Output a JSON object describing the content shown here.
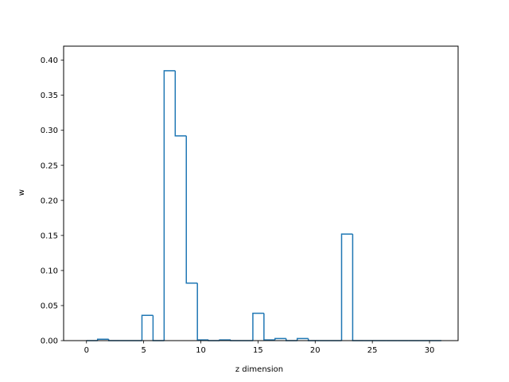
{
  "chart_data": {
    "type": "bar",
    "style": "step-histogram",
    "color": "#1f77b4",
    "xlabel": "z dimension",
    "ylabel": "w",
    "xlim": [
      -2.0,
      32.5
    ],
    "ylim": [
      0,
      0.42
    ],
    "xticks": [
      0,
      5,
      10,
      15,
      20,
      25,
      30
    ],
    "xtick_labels": [
      "0",
      "5",
      "10",
      "15",
      "20",
      "25",
      "30"
    ],
    "yticks": [
      0.0,
      0.05,
      0.1,
      0.15,
      0.2,
      0.25,
      0.3,
      0.35,
      0.4
    ],
    "ytick_labels": [
      "0.00",
      "0.05",
      "0.10",
      "0.15",
      "0.20",
      "0.25",
      "0.30",
      "0.35",
      "0.40"
    ],
    "bin_edges": [
      0,
      0.97,
      1.94,
      2.91,
      3.88,
      4.85,
      5.82,
      6.79,
      7.76,
      8.73,
      9.7,
      10.67,
      11.64,
      12.61,
      13.58,
      14.55,
      15.52,
      16.49,
      17.46,
      18.43,
      19.4,
      20.37,
      21.34,
      22.31,
      23.28,
      24.25,
      25.22,
      26.19,
      27.16,
      28.13,
      29.1,
      30.07,
      31.04
    ],
    "values": [
      0.0,
      0.002,
      0.0,
      0.0,
      0.0,
      0.036,
      0.0,
      0.385,
      0.292,
      0.082,
      0.001,
      0.0,
      0.001,
      0.0,
      0.0,
      0.039,
      0.001,
      0.003,
      0.0,
      0.003,
      0.0,
      0.0,
      0.0,
      0.152,
      0.0,
      0.0,
      0.0,
      0.0,
      0.0,
      0.0,
      0.0,
      0.0
    ]
  }
}
